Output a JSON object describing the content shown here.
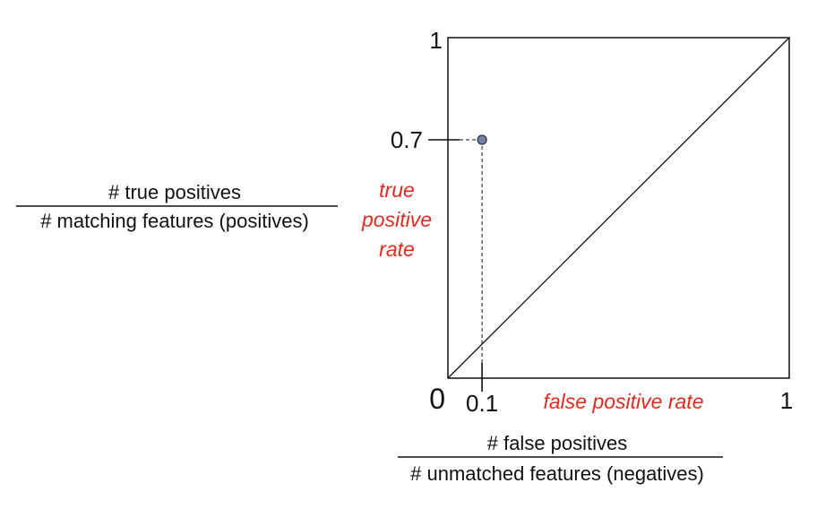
{
  "chart_data": {
    "type": "scatter",
    "xlabel": "false positive rate",
    "ylabel_lines": [
      "true",
      "positive",
      "rate"
    ],
    "xlim": [
      0,
      1
    ],
    "ylim": [
      0,
      1
    ],
    "x_ticks": [
      {
        "value": 0,
        "label": "0"
      },
      {
        "value": 0.1,
        "label": "0.1"
      },
      {
        "value": 1,
        "label": "1"
      }
    ],
    "y_ticks": [
      {
        "value": 1,
        "label": "1"
      },
      {
        "value": 0.7,
        "label": "0.7"
      }
    ],
    "diagonal": [
      [
        0,
        0
      ],
      [
        1,
        1
      ]
    ],
    "points": [
      {
        "x": 0.1,
        "y": 0.7
      }
    ],
    "y_formula": {
      "numerator": "# true positives",
      "denominator": "# matching features (positives)"
    },
    "x_formula": {
      "numerator": "# false positives",
      "denominator": "# unmatched features (negatives)"
    },
    "grid": false,
    "colors": {
      "label_red": "#e02b20",
      "point_fill": "#7a80a6",
      "point_stroke": "#2a2f4a",
      "axis": "#111111"
    }
  }
}
